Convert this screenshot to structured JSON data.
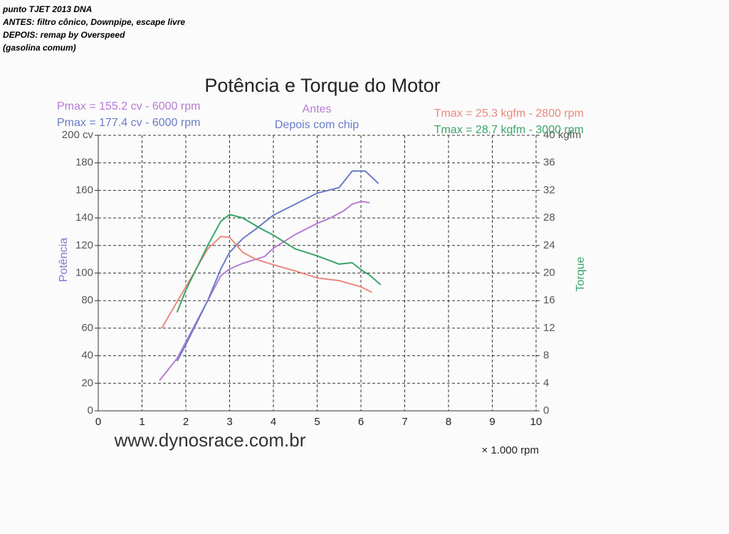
{
  "header": [
    "punto TJET 2013 DNA",
    "ANTES: filtro cônico, Downpipe, escape livre",
    "DEPOIS: remap by Overspeed",
    "(gasolina comum)"
  ],
  "chart_data": {
    "type": "line",
    "title": "Potência e Torque do Motor",
    "xlabel": "× 1.000 rpm",
    "ylabel": "Potência",
    "y2label": "Torque",
    "xlim": [
      0,
      10
    ],
    "xticks": [
      0,
      1,
      2,
      3,
      4,
      5,
      6,
      7,
      8,
      9,
      10
    ],
    "ylim": [
      0,
      200
    ],
    "yticks": [
      0,
      20,
      40,
      60,
      80,
      100,
      120,
      140,
      160,
      180,
      {
        "value": 200,
        "label": "200 cv"
      }
    ],
    "y2lim": [
      0,
      40
    ],
    "y2ticks": [
      0,
      4,
      8,
      12,
      16,
      20,
      24,
      28,
      32,
      36,
      {
        "value": 40,
        "label": "40 kgfm"
      }
    ],
    "grid": true,
    "annotations": [
      {
        "text": "Antes",
        "color": "#b77bd4"
      },
      {
        "text": "Depois com chip",
        "color": "#6a7cc8"
      },
      {
        "text": "www.dynosrace.com.br",
        "color": "#333333"
      }
    ],
    "series": [
      {
        "name": "Pmax = 155.2 cv - 6000 rpm",
        "color": "#b77bd4",
        "x": [
          1.4,
          1.8,
          2.0,
          2.5,
          2.8,
          3.0,
          3.3,
          3.8,
          4.0,
          4.5,
          5.0,
          5.3,
          5.6,
          5.8,
          6.0,
          6.2
        ],
        "values": [
          22,
          38,
          50,
          80,
          98,
          103,
          107,
          112,
          118,
          128,
          136,
          140,
          145,
          150,
          152,
          151
        ]
      },
      {
        "name": "Pmax = 177.4 cv - 6000 rpm",
        "color": "#6a7cc8",
        "x": [
          1.8,
          2.0,
          2.5,
          2.8,
          3.0,
          3.3,
          3.6,
          4.0,
          4.5,
          5.0,
          5.5,
          5.8,
          6.1,
          6.4
        ],
        "values": [
          36,
          48,
          80,
          103,
          115,
          125,
          132,
          142,
          150,
          158,
          162,
          174,
          174,
          165
        ]
      },
      {
        "name": "Tmax = 25.3 kgfm - 2800 rpm",
        "color": "#e88a7c",
        "axis": "y2",
        "x": [
          1.45,
          2.0,
          2.5,
          2.8,
          3.0,
          3.3,
          3.6,
          4.0,
          4.5,
          5.0,
          5.5,
          6.0,
          6.25
        ],
        "values": [
          12,
          18,
          23.5,
          25.3,
          25.2,
          23,
          22,
          21.2,
          20.3,
          19.3,
          18.9,
          18,
          17.2
        ]
      },
      {
        "name": "Tmax = 28.7 kgfm - 3000 rpm",
        "color": "#3aa56b",
        "axis": "y2",
        "x": [
          1.8,
          2.0,
          2.5,
          2.8,
          3.0,
          3.3,
          3.7,
          4.0,
          4.5,
          5.0,
          5.5,
          5.8,
          6.0,
          6.2,
          6.45
        ],
        "values": [
          14.3,
          17.5,
          24,
          27.5,
          28.5,
          28,
          26.5,
          25.5,
          23.5,
          22.5,
          21.3,
          21.5,
          20.5,
          19.7,
          18.3
        ]
      }
    ]
  }
}
